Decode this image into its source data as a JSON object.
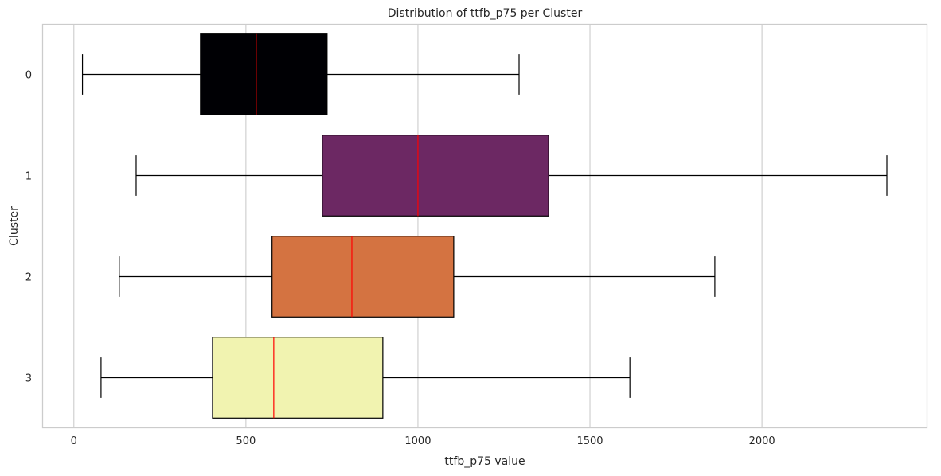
{
  "chart_data": {
    "type": "box",
    "orientation": "horizontal",
    "title": "Distribution of ttfb_p75 per Cluster",
    "xlabel": "ttfb_p75 value",
    "ylabel": "Cluster",
    "xlim": [
      -92,
      2481
    ],
    "xticks": [
      0,
      500,
      1000,
      1500,
      2000
    ],
    "xtick_labels": [
      "0",
      "500",
      "1000",
      "1500",
      "2000"
    ],
    "grid": "vertical",
    "categories": [
      "0",
      "1",
      "2",
      "3"
    ],
    "boxes": [
      {
        "cluster": "0",
        "whislo": 25,
        "q1": 368,
        "median": 530,
        "q3": 736,
        "whishi": 1294,
        "color": "#000004"
      },
      {
        "cluster": "1",
        "whislo": 181,
        "q1": 722,
        "median": 1000,
        "q3": 1380,
        "whishi": 2363,
        "color": "#6c2863"
      },
      {
        "cluster": "2",
        "whislo": 132,
        "q1": 576,
        "median": 808,
        "q3": 1104,
        "whishi": 1863,
        "color": "#d47341"
      },
      {
        "cluster": "3",
        "whislo": 79,
        "q1": 403,
        "median": 581,
        "q3": 898,
        "whishi": 1616,
        "color": "#f1f3b0"
      }
    ],
    "median_color": "#ff0000"
  }
}
